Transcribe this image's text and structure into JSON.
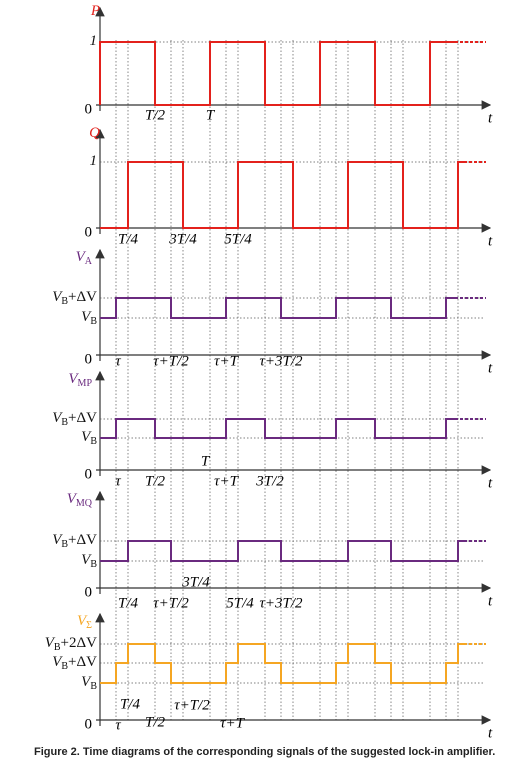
{
  "panels": [
    {
      "name": {
        "v": "P"
      },
      "levels": [
        {
          "v": "1"
        }
      ],
      "origin": "0",
      "axis": "t",
      "xlabels": [
        "T/2",
        "T"
      ]
    },
    {
      "name": {
        "v": "Q"
      },
      "levels": [
        {
          "v": "1"
        }
      ],
      "origin": "0",
      "axis": "t",
      "xlabels": [
        "T/4",
        "3T/4",
        "5T/4"
      ]
    },
    {
      "name": {
        "v": "V",
        "sub": "A"
      },
      "levels": [
        {
          "v": "V",
          "sub": "B",
          "rest": "+ΔV"
        },
        {
          "v": "V",
          "sub": "B"
        }
      ],
      "origin": "0",
      "axis": "t",
      "xlabels": [
        "τ",
        "τ+T/2",
        "τ+T",
        "τ+3T/2"
      ]
    },
    {
      "name": {
        "v": "V",
        "sub": "MP"
      },
      "levels": [
        {
          "v": "V",
          "sub": "B",
          "rest": "+ΔV"
        },
        {
          "v": "V",
          "sub": "B"
        }
      ],
      "origin": "0",
      "axis": "t",
      "xlabels": [
        "T",
        "τ",
        "T/2",
        "τ+T",
        "3T/2"
      ]
    },
    {
      "name": {
        "v": "V",
        "sub": "MQ"
      },
      "levels": [
        {
          "v": "V",
          "sub": "B",
          "rest": "+ΔV"
        },
        {
          "v": "V",
          "sub": "B"
        }
      ],
      "origin": "0",
      "axis": "t",
      "xlabels": [
        "3T/4",
        "T/4",
        "τ+T/2",
        "5T/4",
        "τ+3T/2"
      ]
    },
    {
      "name": {
        "v": "V",
        "sub": "Σ"
      },
      "levels": [
        {
          "v": "V",
          "sub": "B",
          "rest": "+2ΔV"
        },
        {
          "v": "V",
          "sub": "B",
          "rest": "+ΔV"
        },
        {
          "v": "V",
          "sub": "B"
        }
      ],
      "origin": "0",
      "axis": "t",
      "xlabels": [
        "T/4",
        "τ+T/2",
        "τ",
        "T/2",
        "τ+T"
      ]
    }
  ],
  "caption": "Figure 2. Time diagrams of the corresponding signals of the suggested lock-in amplifier."
}
